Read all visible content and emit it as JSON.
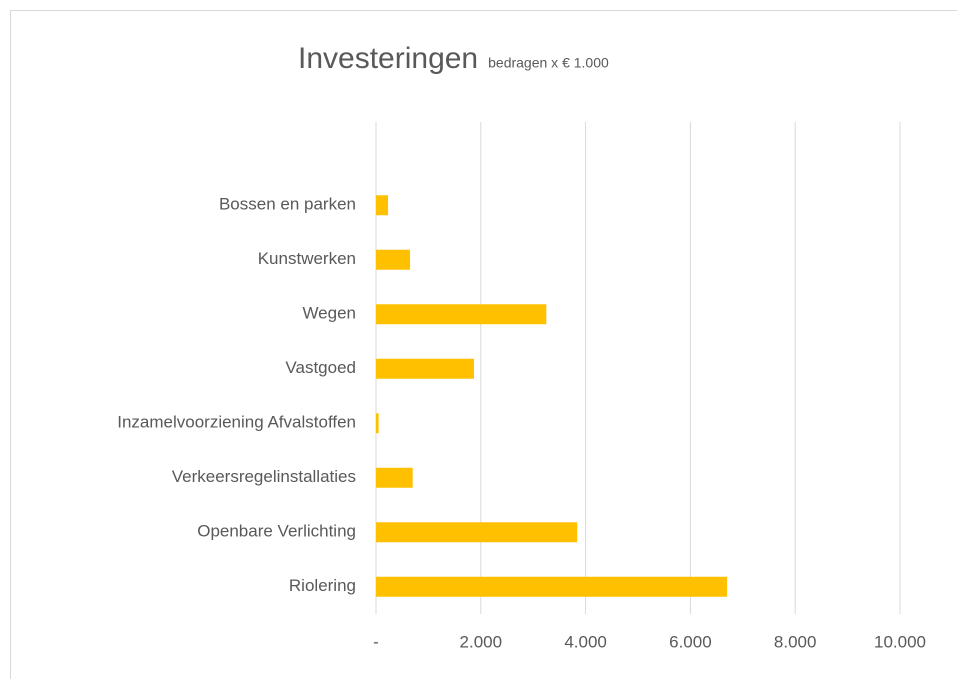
{
  "chart_data": {
    "type": "bar",
    "orientation": "horizontal",
    "title": "Investeringen",
    "subtitle": "bedragen x € 1.000",
    "categories": [
      "Bossen en parken",
      "Kunstwerken",
      "Wegen",
      "Vastgoed",
      "Inzamelvoorziening Afvalstoffen",
      "Verkeersregelinstallaties",
      "Openbare Verlichting",
      "Riolering"
    ],
    "values": [
      230,
      650,
      3250,
      1870,
      50,
      700,
      3840,
      6700
    ],
    "color": "#ffc000",
    "xlim": [
      0,
      10000
    ],
    "xticks": [
      {
        "value": 0,
        "label": "-"
      },
      {
        "value": 2000,
        "label": "2.000"
      },
      {
        "value": 4000,
        "label": "4.000"
      },
      {
        "value": 6000,
        "label": "6.000"
      },
      {
        "value": 8000,
        "label": "8.000"
      },
      {
        "value": 10000,
        "label": "10.000"
      }
    ],
    "grid": true
  }
}
